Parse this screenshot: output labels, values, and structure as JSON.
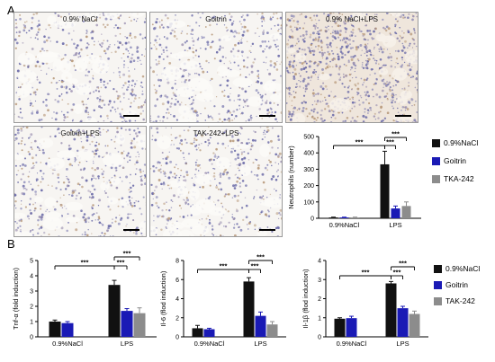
{
  "panels": {
    "a": "A",
    "b": "B"
  },
  "micrographs": [
    {
      "label": "0.9% NaCl",
      "tone": "light"
    },
    {
      "label": "Goitrin",
      "tone": "light"
    },
    {
      "label": "0.9% NaCl+LPS",
      "tone": "inflamed"
    },
    {
      "label": "Goitrin+LPS",
      "tone": "light"
    },
    {
      "label": "TAK-242+LPS",
      "tone": "light"
    }
  ],
  "colors": {
    "nacl": "#111111",
    "goitrin": "#1a1ab5",
    "tak": "#8c8c8c"
  },
  "legend_top": [
    "0.9%NaCl",
    "Goitrin",
    "TKA-242"
  ],
  "legend_bottom": [
    "0.9%NaCl",
    "Goitrin",
    "TAK-242"
  ],
  "sig": "***",
  "chart_data": [
    {
      "type": "bar",
      "ylabel": "Neutrophils (number)",
      "ylim": [
        0,
        500
      ],
      "yticks": [
        "0",
        "100",
        "200",
        "300",
        "400",
        "500"
      ],
      "categories": [
        "0.9%NaCl",
        "LPS"
      ],
      "series": [
        {
          "name": "0.9%NaCl",
          "values": [
            5,
            330
          ],
          "errors": [
            2,
            80
          ]
        },
        {
          "name": "Goitrin",
          "values": [
            5,
            60
          ],
          "errors": [
            2,
            15
          ]
        },
        {
          "name": "TKA-242",
          "values": [
            5,
            75
          ],
          "errors": [
            2,
            25
          ]
        }
      ]
    },
    {
      "type": "bar",
      "ylabel": "Tnf-α (fold induction)",
      "ylim": [
        0,
        5
      ],
      "yticks": [
        "0",
        "1",
        "2",
        "3",
        "4",
        "5"
      ],
      "categories": [
        "0.9%NaCl",
        "LPS"
      ],
      "series": [
        {
          "name": "0.9%NaCl",
          "values": [
            1.0,
            3.4
          ],
          "errors": [
            0.1,
            0.3
          ]
        },
        {
          "name": "Goitrin",
          "values": [
            0.9,
            1.7
          ],
          "errors": [
            0.1,
            0.15
          ]
        },
        {
          "name": "TAK-242",
          "values": [
            0,
            1.55
          ],
          "errors": [
            0,
            0.35
          ]
        }
      ]
    },
    {
      "type": "bar",
      "ylabel": "Il-6 (flod induction)",
      "ylim": [
        0,
        8
      ],
      "yticks": [
        "0",
        "2",
        "4",
        "6",
        "8"
      ],
      "categories": [
        "0.9%NaCl",
        "LPS"
      ],
      "series": [
        {
          "name": "0.9%NaCl",
          "values": [
            0.9,
            5.8
          ],
          "errors": [
            0.3,
            0.4
          ]
        },
        {
          "name": "Goitrin",
          "values": [
            0.8,
            2.2
          ],
          "errors": [
            0.1,
            0.4
          ]
        },
        {
          "name": "TAK-242",
          "values": [
            0,
            1.3
          ],
          "errors": [
            0,
            0.3
          ]
        }
      ]
    },
    {
      "type": "bar",
      "ylabel": "Il-1β (flod induction)",
      "ylim": [
        0,
        4
      ],
      "yticks": [
        "0",
        "1",
        "2",
        "3",
        "4"
      ],
      "categories": [
        "0.9%NaCl",
        "LPS"
      ],
      "series": [
        {
          "name": "0.9%NaCl",
          "values": [
            0.95,
            2.8
          ],
          "errors": [
            0.05,
            0.1
          ]
        },
        {
          "name": "Goitrin",
          "values": [
            0.98,
            1.5
          ],
          "errors": [
            0.1,
            0.1
          ]
        },
        {
          "name": "TAK-242",
          "values": [
            0,
            1.2
          ],
          "errors": [
            0,
            0.15
          ]
        }
      ]
    }
  ]
}
